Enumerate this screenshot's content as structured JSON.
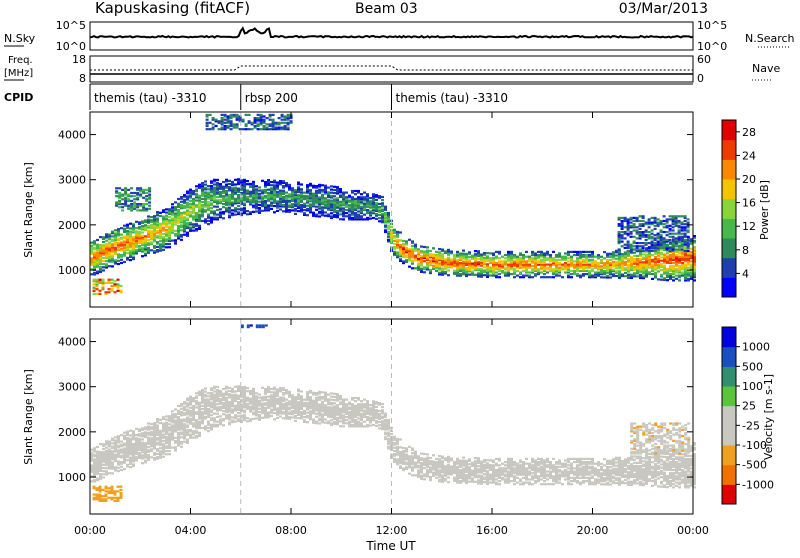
{
  "header": {
    "station": "Kapuskasing (fitACF)",
    "beam": "Beam 03",
    "date": "03/Mar/2013"
  },
  "top_panel": {
    "left_label": "N.Sky",
    "left_ticks": [
      "10^5",
      "10^0"
    ],
    "right_ticks": [
      "10^5",
      "10^0"
    ],
    "right_label": "N.Search"
  },
  "freq_panel": {
    "left_label_line1": "Freq.",
    "left_label_line2": "[MHz]",
    "left_ticks": [
      "18",
      "8"
    ],
    "right_ticks": [
      "60",
      "0"
    ],
    "right_label": "Nave"
  },
  "cpid_panel": {
    "label": "CPID",
    "segments": [
      {
        "name": "themis (tau) -3310",
        "start_hour": 0,
        "end_hour": 6
      },
      {
        "name": "rbsp 200",
        "start_hour": 6,
        "end_hour": 12
      },
      {
        "name": "themis (tau) -3310",
        "start_hour": 12,
        "end_hour": 24
      }
    ]
  },
  "colors": {
    "power": [
      "#0000ff",
      "#1f3fb0",
      "#2d8a5a",
      "#47b84a",
      "#88d43a",
      "#f6c300",
      "#f98a00",
      "#f03a00",
      "#e00000"
    ],
    "velocity": [
      "#0000e0",
      "#1a4fc0",
      "#2f8f6f",
      "#5ac43c",
      "#c8c8c0",
      "#c8c8c0",
      "#f0a020",
      "#f07000",
      "#e00000"
    ]
  },
  "chart_data": [
    {
      "type": "heatmap",
      "quantity": "Power",
      "ylabel": "Slant Range [km]",
      "xlabel": "",
      "ylim": [
        180,
        4500
      ],
      "xlim": [
        0,
        24
      ],
      "yticks": [
        "1000",
        "2000",
        "3000",
        "4000"
      ],
      "xticks": [
        "00:00",
        "04:00",
        "08:00",
        "12:00",
        "16:00",
        "20:00",
        "00:00"
      ],
      "colorbar": {
        "label": "Power [dB]",
        "range": [
          0,
          30
        ],
        "ticks": [
          "4",
          "8",
          "12",
          "16",
          "20",
          "24",
          "28"
        ]
      },
      "band_profile": {
        "hours": [
          0.0,
          1.0,
          2.0,
          3.0,
          3.5,
          4.0,
          4.5,
          5.0,
          6.0,
          7.0,
          8.0,
          9.0,
          10.0,
          11.0,
          11.6,
          12.0,
          12.5,
          13.0,
          14.0,
          16.0,
          18.0,
          20.0,
          21.0,
          22.0,
          23.0,
          24.0
        ],
        "center": [
          1250,
          1500,
          1700,
          1900,
          2100,
          2300,
          2450,
          2550,
          2600,
          2620,
          2580,
          2520,
          2450,
          2400,
          2300,
          1650,
          1400,
          1250,
          1150,
          1100,
          1100,
          1100,
          1110,
          1150,
          1200,
          1250
        ],
        "width": [
          400,
          400,
          420,
          450,
          480,
          500,
          500,
          450,
          400,
          350,
          350,
          350,
          350,
          300,
          300,
          350,
          300,
          300,
          280,
          280,
          280,
          280,
          300,
          350,
          450,
          500
        ],
        "peak_dB": [
          24,
          24,
          22,
          20,
          18,
          16,
          14,
          12,
          10,
          10,
          10,
          10,
          10,
          10,
          12,
          22,
          26,
          26,
          26,
          24,
          24,
          22,
          22,
          24,
          26,
          26
        ]
      },
      "patches": [
        {
          "start_hour": 0.1,
          "end_hour": 1.2,
          "range_low": 450,
          "range_high": 800,
          "value": 20
        },
        {
          "start_hour": 4.6,
          "end_hour": 8.0,
          "range_low": 4100,
          "range_high": 4450,
          "value": 6
        },
        {
          "start_hour": 1.0,
          "end_hour": 2.4,
          "range_low": 2300,
          "range_high": 2800,
          "value": 8
        },
        {
          "start_hour": 21.0,
          "end_hour": 23.8,
          "range_low": 1400,
          "range_high": 2200,
          "value": 6
        }
      ]
    },
    {
      "type": "heatmap",
      "quantity": "Velocity",
      "ylabel": "Slant Range [km]",
      "xlabel": "Time UT",
      "ylim": [
        180,
        4500
      ],
      "xlim": [
        0,
        24
      ],
      "yticks": [
        "1000",
        "2000",
        "3000",
        "4000"
      ],
      "xticks": [
        "00:00",
        "04:00",
        "08:00",
        "12:00",
        "16:00",
        "20:00",
        "00:00"
      ],
      "colorbar": {
        "label": "Velocity [m s-1]",
        "range": [
          -1200,
          1200
        ],
        "ticks": [
          "1000",
          "500",
          "100",
          "25",
          "-25",
          "-100",
          "-500",
          "-1000"
        ]
      },
      "band_velocity_mps": 0,
      "patches": [
        {
          "start_hour": 0.1,
          "end_hour": 1.2,
          "range_low": 450,
          "range_high": 800,
          "value": -150
        },
        {
          "start_hour": 6.0,
          "end_hour": 7.0,
          "range_low": 4300,
          "range_high": 4370,
          "value": 800
        },
        {
          "start_hour": 21.5,
          "end_hour": 23.8,
          "range_low": 1500,
          "range_high": 2200,
          "value": -80
        }
      ]
    }
  ]
}
